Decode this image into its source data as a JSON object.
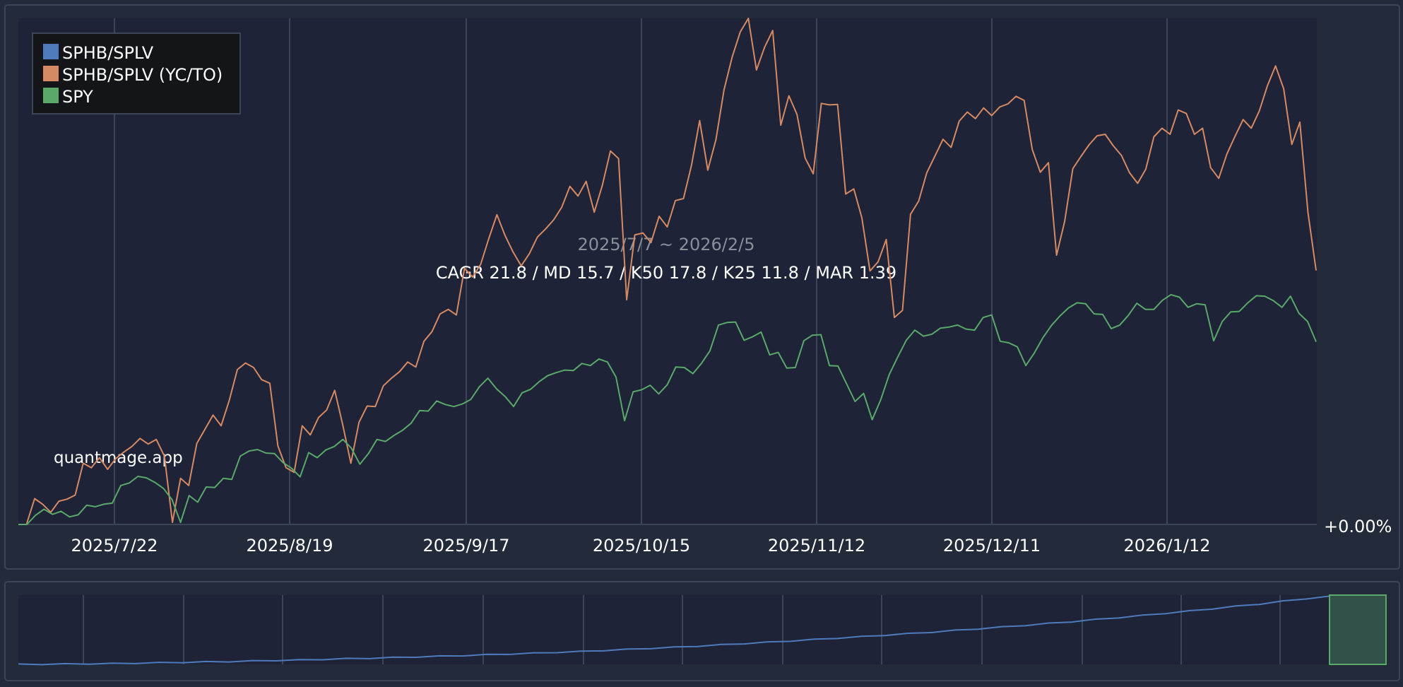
{
  "chart_data": {
    "type": "line",
    "watermark": "quantmage.app",
    "period": "2025/7/7 ~ 2026/2/5",
    "stats": "CAGR 21.8 / MD 15.7 / K50 17.8 / K25 11.8 / MAR 1.39",
    "baseline_label": "+0.00%",
    "x_tick_labels": [
      "2025/7/22",
      "2025/8/19",
      "2025/9/17",
      "2025/10/15",
      "2025/11/12",
      "2025/12/11",
      "2026/1/12"
    ],
    "legend": [
      "SPHB/SPLV",
      "SPHB/SPLV (YC/TO)",
      "SPY"
    ],
    "legend_placement": "top-left",
    "grid": true,
    "colors": {
      "background": "#232a3a",
      "plot": "#1e2337",
      "grid": "#3c4457",
      "text": "#ffffff",
      "muted": "#8a8f99",
      "series_blue": "#4f7bbd",
      "series_orange": "#d68a64",
      "series_green": "#5aa86a"
    },
    "series": [
      {
        "name": "SPHB/SPLV (YC/TO)",
        "color": "#d68a64",
        "values": [
          0,
          0,
          5.1,
          4,
          2.4,
          4.6,
          5,
          5.8,
          12.1,
          11.2,
          13.2,
          10.9,
          13,
          14.3,
          15.4,
          17,
          15.9,
          16.8,
          13.5,
          0.4,
          9.1,
          7.7,
          16,
          18.8,
          21.6,
          19.5,
          24.5,
          30.6,
          31.9,
          31,
          28.6,
          27.9,
          15.5,
          11.2,
          10.3,
          19.5,
          17.7,
          21.1,
          22.6,
          26.5,
          19.6,
          12.1,
          20.2,
          23.4,
          23.3,
          27.4,
          28.9,
          30.2,
          32.1,
          31.1,
          36.2,
          38.1,
          41.6,
          42.5,
          41.4,
          50.6,
          48.9,
          51.4,
          56.5,
          61.2,
          57.1,
          53.8,
          51.1,
          53.5,
          56.8,
          58.4,
          60.2,
          62.7,
          66.8,
          64.9,
          67.8,
          61.7,
          67,
          73.8,
          72.3,
          44.4,
          57.2,
          57.6,
          55.7,
          60.9,
          58.8,
          64,
          64.4,
          71,
          79.8,
          70,
          76,
          85.9,
          92.3,
          97.3,
          100,
          89.8,
          94.3,
          97.6,
          78.9,
          84.7,
          81,
          72.4,
          69.3,
          83.2,
          82.9,
          83,
          65.3,
          66.3,
          60.6,
          50.1,
          51.9,
          56.3,
          40.9,
          42.3,
          61.3,
          63.9,
          69.5,
          72.8,
          76.1,
          74.5,
          79.7,
          81.5,
          80.2,
          82.3,
          80.8,
          82.5,
          83.1,
          84.6,
          83.8,
          74.1,
          69.6,
          71.5,
          53.2,
          59.9,
          70.3,
          72.7,
          75,
          76.8,
          77.1,
          74.8,
          72.9,
          69.5,
          67.4,
          70.2,
          76.6,
          78.3,
          77.1,
          81.9,
          81.2,
          77.1,
          78.3,
          70.5,
          68.4,
          73.2,
          76.7,
          80,
          78.3,
          81.7,
          86.7,
          90.6,
          86.1,
          75.1,
          79.5,
          61.6,
          50.2
        ]
      },
      {
        "name": "SPY",
        "color": "#5aa86a",
        "values": [
          0,
          0,
          1.8,
          3,
          2,
          2.6,
          1.5,
          1.9,
          3.8,
          3.5,
          4,
          4.2,
          7.7,
          8.2,
          9.5,
          9.2,
          8.3,
          7.1,
          4.9,
          0.4,
          5.7,
          4.4,
          7.4,
          7.3,
          9.1,
          8.9,
          13.5,
          14.5,
          14.8,
          14.1,
          14,
          12.2,
          11.1,
          9.4,
          14.2,
          13.2,
          14.7,
          15.4,
          16.8,
          15.1,
          11.9,
          14,
          16.8,
          16.4,
          17.6,
          18.6,
          20,
          22.5,
          22.4,
          24.4,
          23.7,
          23.3,
          23.8,
          24.7,
          27.2,
          28.9,
          26.8,
          25.3,
          23.3,
          26,
          26.7,
          28.2,
          29.4,
          30,
          30.5,
          30.4,
          31.8,
          31.4,
          32.7,
          32.1,
          29.1,
          20.5,
          26.2,
          26.6,
          27.5,
          25.8,
          27.6,
          31.1,
          31,
          29.8,
          31.8,
          34.3,
          39.4,
          39.9,
          40,
          36.4,
          37.1,
          38,
          33.5,
          34,
          30.9,
          31,
          36.3,
          37.4,
          37.5,
          31.4,
          31.3,
          27.8,
          24.3,
          25.9,
          20.7,
          24.6,
          29.6,
          33.1,
          36.4,
          38.4,
          37.2,
          37.6,
          38.8,
          39,
          39.4,
          38.6,
          38.4,
          40.9,
          41.4,
          36.2,
          35.9,
          35.1,
          31.4,
          33.9,
          36.9,
          39.3,
          41.2,
          42.8,
          43.8,
          43.6,
          41.6,
          41.5,
          38.7,
          39.4,
          41.3,
          43.7,
          42.5,
          42.5,
          44.3,
          45.4,
          44.9,
          42.9,
          43.6,
          43.4,
          36.3,
          40.1,
          42,
          42.1,
          43.8,
          45.2,
          45.1,
          44.2,
          42.9,
          45.1,
          41.7,
          40.1,
          36.1
        ]
      }
    ],
    "navigator": {
      "series_name": "SPHB/SPLV",
      "values": [
        0,
        0.2,
        0.5,
        0.8,
        1.3,
        1.8,
        2.4,
        3,
        3.6,
        4.2,
        5,
        5.8,
        6.5,
        7.4,
        8.3,
        9.1,
        10,
        11,
        12,
        13,
        14.2,
        15.3,
        16.5,
        17.8,
        19,
        20.5,
        22,
        23.6,
        25.2,
        27,
        28.8,
        30.7,
        32.6,
        34.6,
        36.7,
        38.8,
        40.8,
        43,
        45.2,
        47.5,
        50,
        52.5,
        55,
        57.5,
        60.3,
        63,
        66,
        69,
        72,
        75.3,
        78.5,
        82,
        85.5,
        89,
        93,
        97,
        100
      ],
      "selection": "last period"
    }
  }
}
